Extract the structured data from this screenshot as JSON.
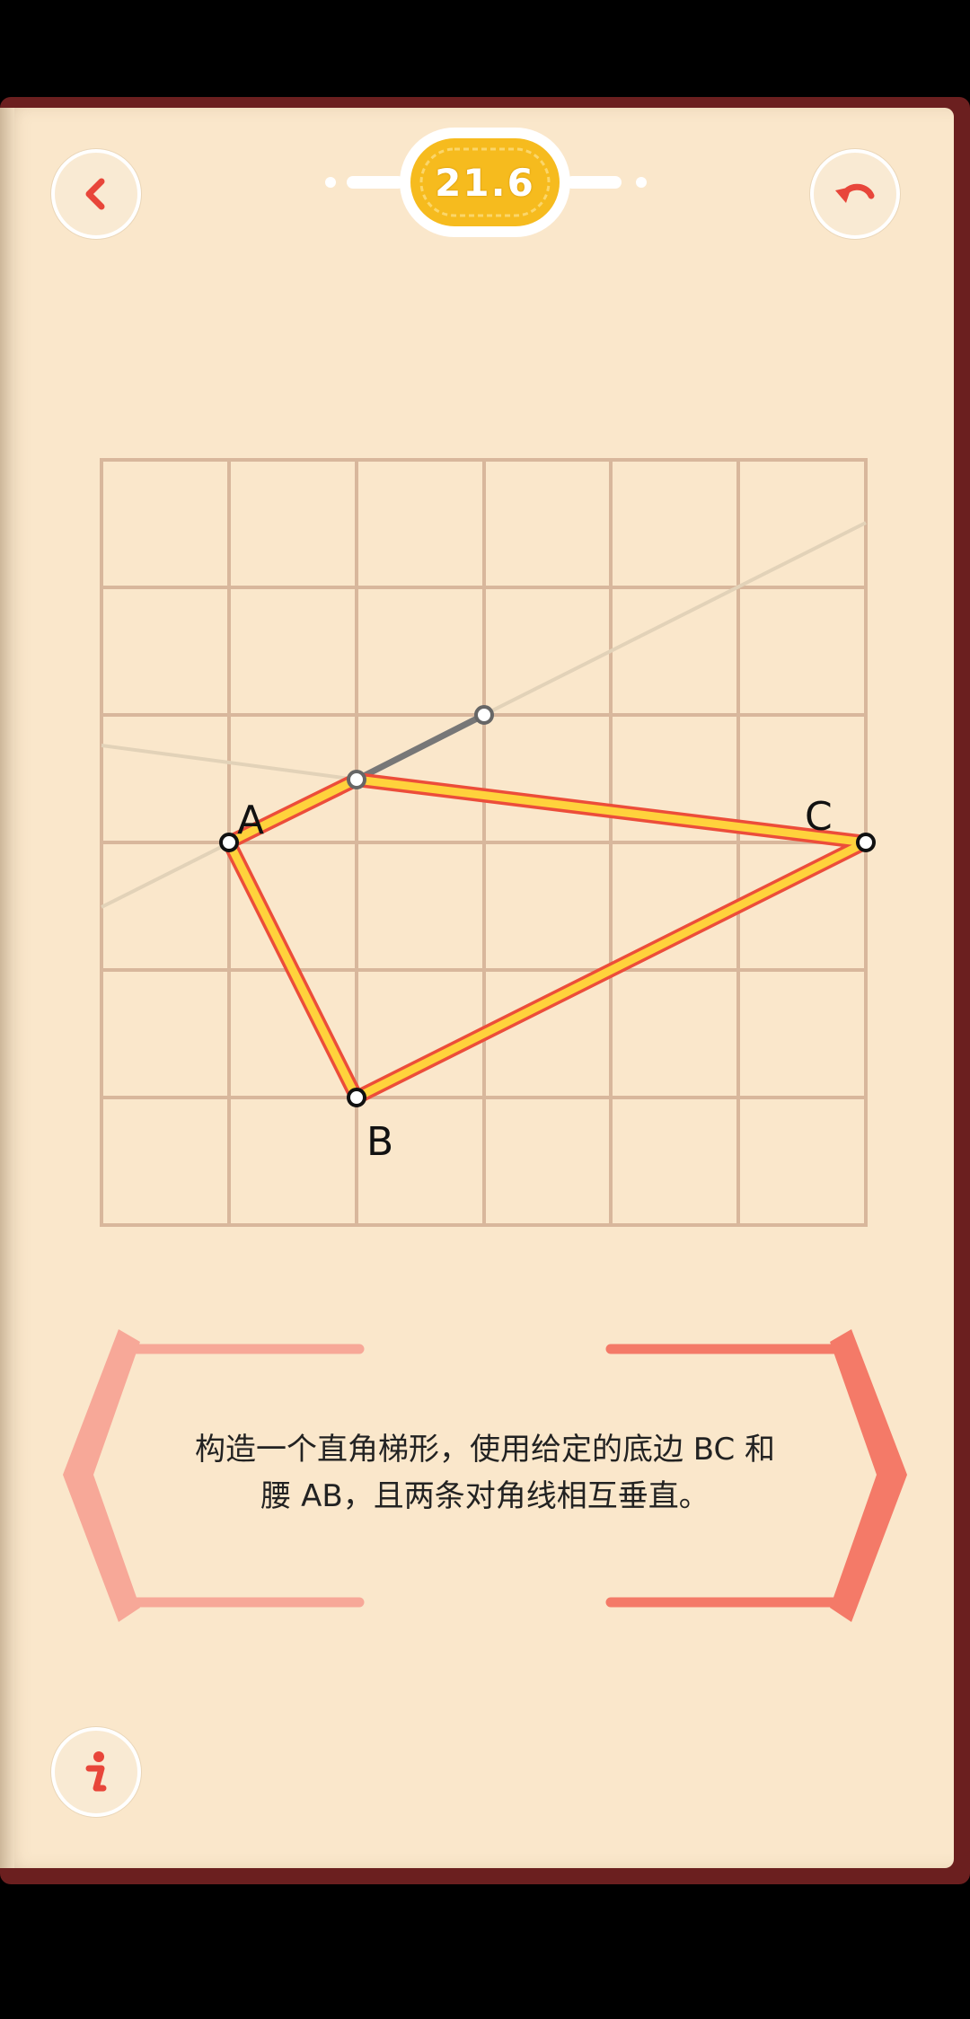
{
  "level": {
    "number": "21.6"
  },
  "toolbar": {
    "back_icon": "chevron-left-icon",
    "undo_icon": "undo-icon",
    "info_icon": "info-icon"
  },
  "colors": {
    "accent": "#e8463a",
    "gold": "#f6bb1e",
    "paper": "#fae7cb",
    "grid": "#d8b79c",
    "segment_fill": "#ffd23c",
    "segment_edge": "#ec4d3a",
    "helper_segment": "#777777",
    "bracket_left": "#f7a898",
    "bracket_right": "#f47a68"
  },
  "puzzle": {
    "points": [
      {
        "label": "A"
      },
      {
        "label": "B"
      },
      {
        "label": "C"
      }
    ],
    "instruction_line1": "构造一个直角梯形，使用给定的底边 BC 和",
    "instruction_line2": "腰 AB，且两条对角线相互垂直。"
  }
}
